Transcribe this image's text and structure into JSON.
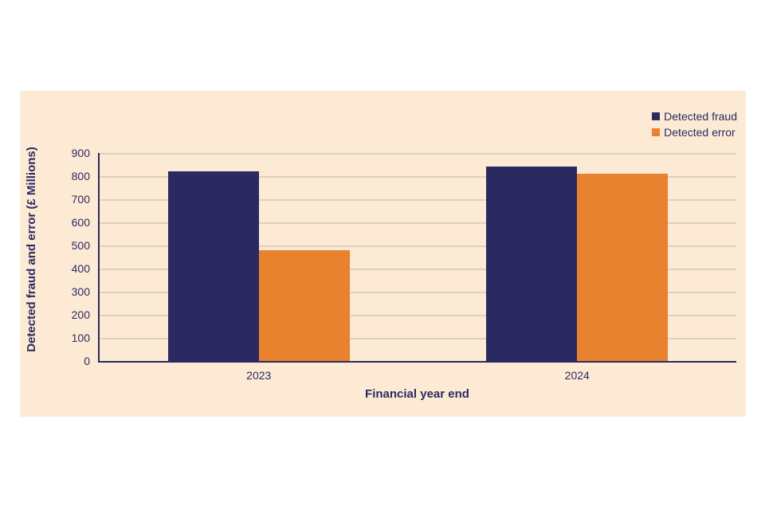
{
  "colors": {
    "page_background": "#ffffff",
    "panel_background": "#fcead5",
    "axis": "#2b2a60",
    "gridline": "#ddcfc5",
    "text": "#2b2a60",
    "fraud_navy": "#2b2a60",
    "error_orange": "#e8822e"
  },
  "chart_data": {
    "type": "bar",
    "categories": [
      "2023",
      "2024"
    ],
    "series": [
      {
        "name": "Detected fraud",
        "color": "#2b2a60",
        "values": [
          820,
          840
        ]
      },
      {
        "name": "Detected error",
        "color": "#e8822e",
        "values": [
          480,
          810
        ]
      }
    ],
    "title": "",
    "xlabel": "Financial year end",
    "ylabel": "Detected fraud and error (£ Millions)",
    "ylim": [
      0,
      900
    ],
    "yticks": [
      0,
      100,
      200,
      300,
      400,
      500,
      600,
      700,
      800,
      900
    ],
    "grid": true,
    "legend_position": "top-right"
  }
}
